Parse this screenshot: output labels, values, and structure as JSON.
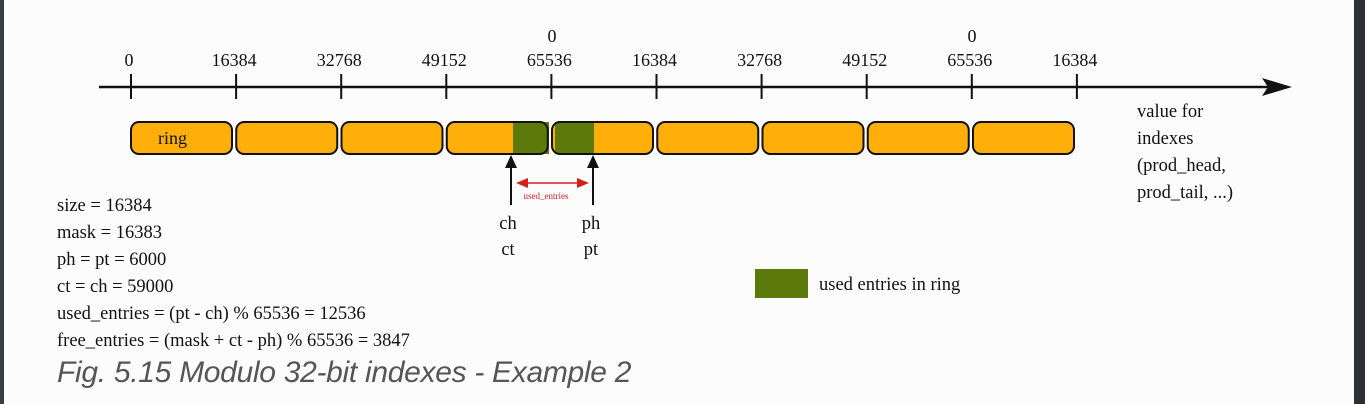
{
  "axis": {
    "wrap_label": "0",
    "ticks": [
      "0",
      "16384",
      "32768",
      "49152",
      "65536",
      "16384",
      "32768",
      "49152",
      "65536",
      "16384"
    ],
    "wrap_tick_indexes": [
      4,
      8
    ],
    "label_lines": [
      "value for",
      "indexes",
      "(prod_head,",
      "prod_tail, ...)"
    ]
  },
  "ring": {
    "label": "ring",
    "segment_count": 9,
    "fill_color": "#FFAE0A",
    "used_color": "#5B7A0B"
  },
  "pointers": {
    "consumer_lines": [
      "ch",
      "ct"
    ],
    "producer_lines": [
      "ph",
      "pt"
    ],
    "span_label": "used_entries",
    "span_color": "#D41F1F"
  },
  "legend": {
    "label": "used entries in ring"
  },
  "info_lines": [
    "size = 16384",
    "mask = 16383",
    "ph = pt = 6000",
    "ct = ch = 59000",
    "used_entries = (pt - ch) % 65536 = 12536",
    "free_entries = (mask + ct - ph) % 65536 = 3847"
  ],
  "caption": "Fig. 5.15 Modulo 32-bit indexes - Example 2"
}
